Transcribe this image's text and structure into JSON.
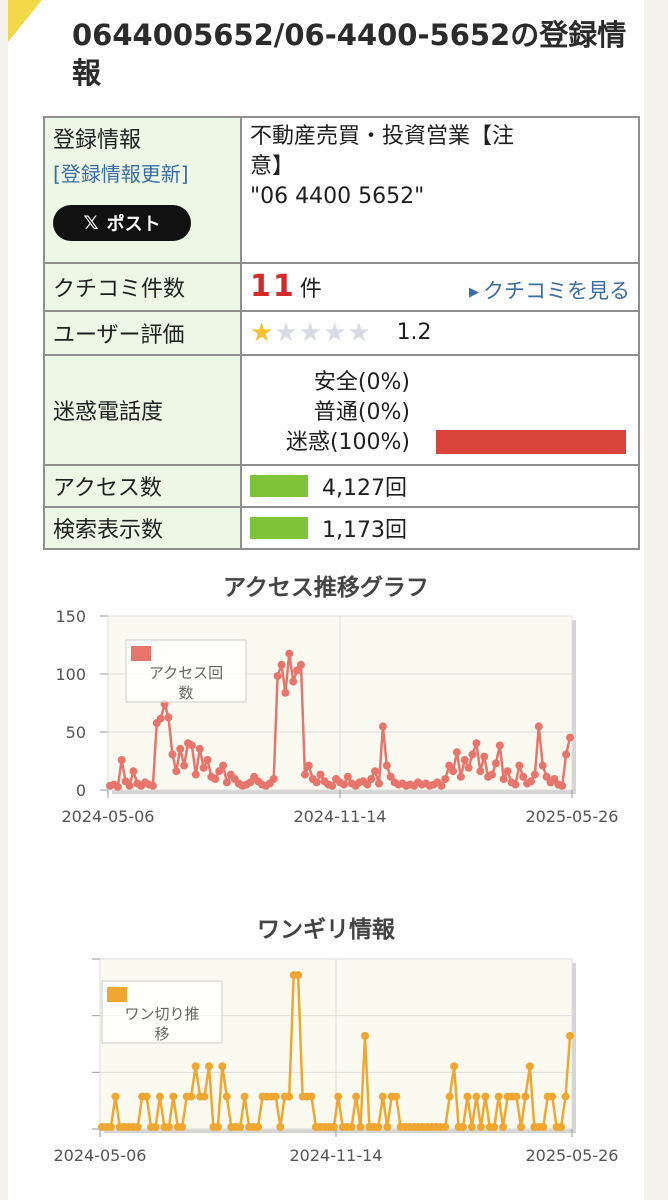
{
  "page": {
    "title": "0644005652/06-4400-5652の登録情報"
  },
  "info": {
    "registration": {
      "label": "登録情報",
      "update_link": "[登録情報更新]",
      "post_button": "ポスト",
      "post_icon": "x-logo-icon",
      "description_line1": "不動産売買・投資営業【注",
      "description_line2": "意】",
      "description_line3": "\"06 4400 5652\""
    },
    "reviews": {
      "label": "クチコミ件数",
      "count": "11",
      "unit": "件",
      "link": "クチコミを見る"
    },
    "rating": {
      "label": "ユーザー評価",
      "value": "1.2",
      "stars_filled": 1,
      "stars_total": 5
    },
    "spam": {
      "label": "迷惑電話度",
      "rows": [
        {
          "text": "安全(0%)",
          "percent": 0
        },
        {
          "text": "普通(0%)",
          "percent": 0
        },
        {
          "text": "迷惑(100%)",
          "percent": 100
        }
      ],
      "bar_color": "#d9433b"
    },
    "access": {
      "label": "アクセス数",
      "value": "4,127回"
    },
    "search": {
      "label": "検索表示数",
      "value": "1,173回"
    }
  },
  "chart_data": [
    {
      "type": "line",
      "title": "アクセス推移グラフ",
      "legend": "アクセス回数",
      "color": "#e8756b",
      "ylim": [
        0,
        150
      ],
      "yticks": [
        "150",
        "100",
        "50",
        "0"
      ],
      "xticks": [
        "2024-05-06",
        "2024-11-14",
        "2025-05-26"
      ],
      "x_start": "2024-05-06",
      "x_end": "2025-05-26",
      "values": [
        2,
        3,
        1,
        25,
        6,
        2,
        15,
        4,
        2,
        5,
        3,
        2,
        58,
        62,
        75,
        63,
        30,
        15,
        35,
        20,
        40,
        38,
        12,
        35,
        18,
        25,
        10,
        8,
        15,
        20,
        5,
        12,
        8,
        4,
        2,
        3,
        5,
        10,
        6,
        3,
        2,
        4,
        8,
        100,
        110,
        85,
        120,
        95,
        105,
        110,
        12,
        20,
        8,
        5,
        12,
        6,
        3,
        2,
        8,
        5,
        3,
        10,
        4,
        2,
        5,
        6,
        3,
        8,
        15,
        4,
        55,
        20,
        10,
        5,
        3,
        4,
        2,
        3,
        2,
        5,
        3,
        4,
        2,
        3,
        5,
        2,
        8,
        20,
        15,
        32,
        10,
        25,
        18,
        30,
        40,
        15,
        28,
        10,
        12,
        22,
        38,
        8,
        15,
        5,
        3,
        20,
        10,
        4,
        6,
        12,
        55,
        20,
        10,
        5,
        8,
        3,
        2,
        30,
        45
      ]
    },
    {
      "type": "line",
      "title": "ワンギリ情報",
      "legend": "ワン切り推移",
      "color": "#f0a732",
      "xticks": [
        "2024-05-06",
        "2024-11-14",
        "2025-05-26"
      ],
      "x_start": "2024-05-06",
      "x_end": "2025-05-26",
      "values": [
        0,
        0,
        0,
        1,
        0,
        0,
        0,
        0,
        0,
        1,
        1,
        0,
        0,
        1,
        0,
        0,
        1,
        0,
        0,
        1,
        1,
        2,
        1,
        1,
        2,
        0,
        0,
        2,
        1,
        0,
        0,
        0,
        1,
        0,
        0,
        0,
        1,
        1,
        1,
        1,
        0,
        1,
        1,
        5,
        5,
        1,
        1,
        1,
        0,
        0,
        0,
        0,
        0,
        1,
        0,
        0,
        0,
        1,
        0,
        3,
        0,
        0,
        0,
        1,
        0,
        1,
        1,
        0,
        0,
        0,
        0,
        0,
        0,
        0,
        0,
        0,
        0,
        0,
        1,
        2,
        0,
        0,
        1,
        0,
        1,
        0,
        1,
        0,
        0,
        1,
        0,
        1,
        1,
        1,
        0,
        1,
        2,
        0,
        0,
        0,
        1,
        1,
        0,
        0,
        1,
        3
      ]
    }
  ]
}
